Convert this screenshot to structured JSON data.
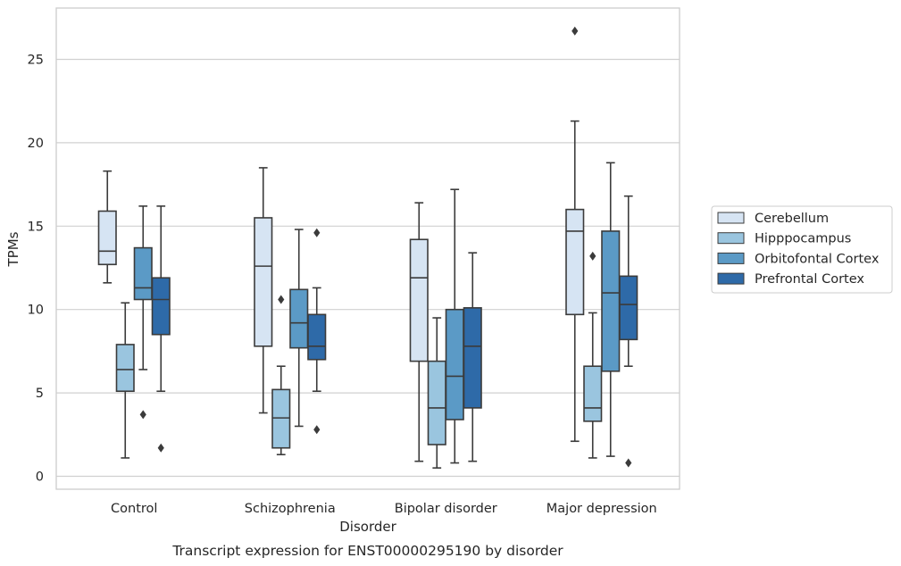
{
  "chart_data": {
    "type": "box",
    "title": "",
    "caption": "Transcript expression for ENST00000295190 by disorder",
    "xlabel": "Disorder",
    "ylabel": "TPMs",
    "ylim": [
      -0.7,
      28
    ],
    "yticks": [
      0,
      5,
      10,
      15,
      20,
      25
    ],
    "grid": "horizontal",
    "legend_position": "right",
    "categories": [
      "Control",
      "Schizophrenia",
      "Bipolar disorder",
      "Major depression"
    ],
    "series": [
      {
        "name": "Cerebellum",
        "color": "#d6e4f3",
        "boxes": [
          {
            "whislo": 11.6,
            "q1": 12.7,
            "med": 13.5,
            "q3": 15.9,
            "whishi": 18.3,
            "fliers": []
          },
          {
            "whislo": 3.8,
            "q1": 7.8,
            "med": 12.6,
            "q3": 15.5,
            "whishi": 18.5,
            "fliers": []
          },
          {
            "whislo": 0.9,
            "q1": 6.9,
            "med": 11.9,
            "q3": 14.2,
            "whishi": 16.4,
            "fliers": []
          },
          {
            "whislo": 2.1,
            "q1": 9.7,
            "med": 14.7,
            "q3": 16.0,
            "whishi": 21.3,
            "fliers": [
              26.7
            ]
          }
        ]
      },
      {
        "name": "Hipppocampus",
        "color": "#9ac5df",
        "boxes": [
          {
            "whislo": 1.1,
            "q1": 5.1,
            "med": 6.4,
            "q3": 7.9,
            "whishi": 10.4,
            "fliers": []
          },
          {
            "whislo": 1.3,
            "q1": 1.7,
            "med": 3.5,
            "q3": 5.2,
            "whishi": 6.6,
            "fliers": [
              10.6
            ]
          },
          {
            "whislo": 0.5,
            "q1": 1.9,
            "med": 4.1,
            "q3": 6.9,
            "whishi": 9.5,
            "fliers": []
          },
          {
            "whislo": 1.1,
            "q1": 3.3,
            "med": 4.1,
            "q3": 6.6,
            "whishi": 9.8,
            "fliers": [
              13.2
            ]
          }
        ]
      },
      {
        "name": "Orbitofontal Cortex",
        "color": "#5b9ac6",
        "boxes": [
          {
            "whislo": 6.4,
            "q1": 10.6,
            "med": 11.3,
            "q3": 13.7,
            "whishi": 16.2,
            "fliers": [
              3.7
            ]
          },
          {
            "whislo": 3.0,
            "q1": 7.7,
            "med": 9.2,
            "q3": 11.2,
            "whishi": 14.8,
            "fliers": []
          },
          {
            "whislo": 0.8,
            "q1": 3.4,
            "med": 6.0,
            "q3": 10.0,
            "whishi": 17.2,
            "fliers": []
          },
          {
            "whislo": 1.2,
            "q1": 6.3,
            "med": 11.0,
            "q3": 14.7,
            "whishi": 18.8,
            "fliers": []
          }
        ]
      },
      {
        "name": "Prefrontal Cortex",
        "color": "#2e6aa8",
        "boxes": [
          {
            "whislo": 5.1,
            "q1": 8.5,
            "med": 10.6,
            "q3": 11.9,
            "whishi": 16.2,
            "fliers": [
              1.7
            ]
          },
          {
            "whislo": 5.1,
            "q1": 7.0,
            "med": 7.8,
            "q3": 9.7,
            "whishi": 11.3,
            "fliers": [
              14.6,
              2.8
            ]
          },
          {
            "whislo": 0.9,
            "q1": 4.1,
            "med": 7.8,
            "q3": 10.1,
            "whishi": 13.4,
            "fliers": []
          },
          {
            "whislo": 6.6,
            "q1": 8.2,
            "med": 10.3,
            "q3": 12.0,
            "whishi": 16.8,
            "fliers": [
              0.8
            ]
          }
        ]
      }
    ]
  }
}
